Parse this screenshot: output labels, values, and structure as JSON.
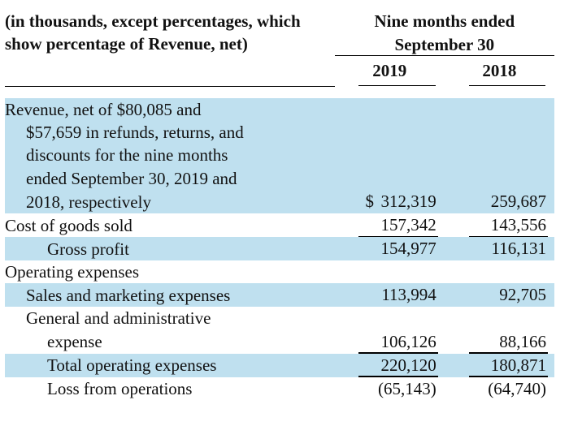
{
  "type": "table",
  "stripe_color": "#bfe0ef",
  "background_color": "#ffffff",
  "text_color": "#111111",
  "border_color": "#000000",
  "font_family": "Times New Roman",
  "font_size_pt": 16,
  "columns": [
    "label",
    "2019",
    "2018"
  ],
  "caption_lines": [
    "(in thousands, except percentages, which",
    "show percentage of Revenue, net)"
  ],
  "period_header": {
    "title": "Nine months ended",
    "subtitle": "September 30",
    "years": [
      "2019",
      "2018"
    ]
  },
  "currency_symbol": "$",
  "rows": [
    {
      "label_lines": [
        "Revenue, net of $80,085 and",
        "$57,659 in refunds, returns, and",
        "discounts for the nine months",
        "ended September 30, 2019 and",
        "2018, respectively"
      ],
      "values": [
        "312,319",
        "259,687"
      ],
      "indent": 1,
      "first_indent": 0,
      "stripe": true,
      "currency": true,
      "underline": false
    },
    {
      "label_lines": [
        "Cost of goods sold"
      ],
      "values": [
        "157,342",
        "143,556"
      ],
      "indent": 0,
      "stripe": false,
      "underline": true
    },
    {
      "label_lines": [
        "Gross profit"
      ],
      "values": [
        "154,977",
        "116,131"
      ],
      "indent": 2,
      "stripe": true,
      "underline": false
    },
    {
      "label_lines": [
        "Operating expenses"
      ],
      "values": [
        "",
        ""
      ],
      "indent": 0,
      "stripe": false,
      "underline": false
    },
    {
      "label_lines": [
        "Sales and marketing expenses"
      ],
      "values": [
        "113,994",
        "92,705"
      ],
      "indent": 1,
      "stripe": true,
      "underline": false
    },
    {
      "label_lines": [
        "General and administrative",
        "expense"
      ],
      "values": [
        "106,126",
        "88,166"
      ],
      "indent": 1,
      "first_indent": 1,
      "last_indent": 2,
      "stripe": false,
      "underline": true
    },
    {
      "label_lines": [
        "Total operating expenses"
      ],
      "values": [
        "220,120",
        "180,871"
      ],
      "indent": 2,
      "stripe": true,
      "underline": true
    },
    {
      "label_lines": [
        "Loss from operations"
      ],
      "values": [
        "(65,143)",
        "(64,740)"
      ],
      "indent": 2,
      "stripe": false,
      "underline": false
    }
  ]
}
